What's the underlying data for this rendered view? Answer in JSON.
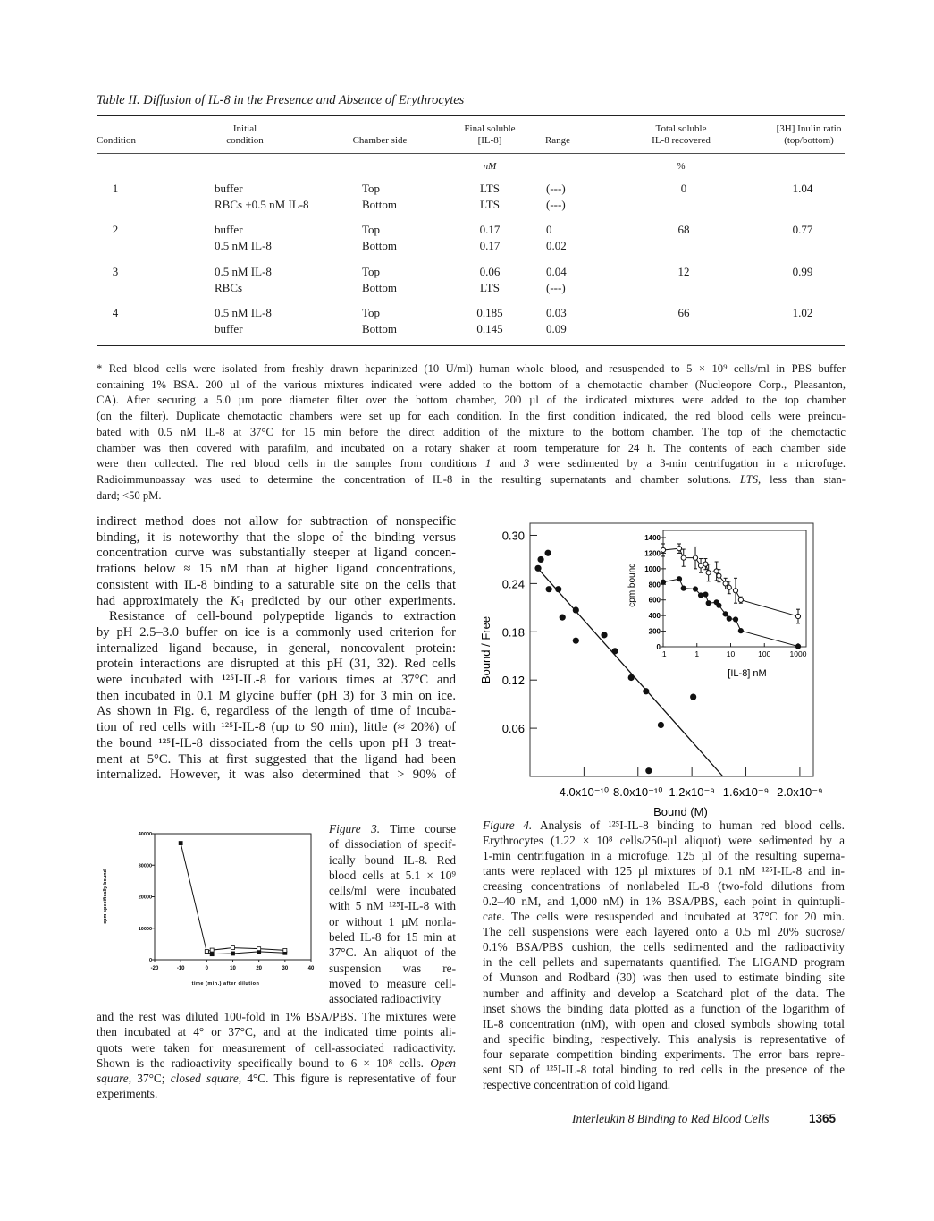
{
  "table": {
    "title": "Table II. Diffusion of IL-8 in the Presence and Absence of Erythrocytes",
    "headers": [
      "Condition",
      "Initial\ncondition",
      "Chamber side",
      "Final soluble\n[IL-8]",
      "Range",
      "Total soluble\nIL-8 recovered",
      "[3H] Inulin ratio\n(top/bottom)"
    ],
    "units": {
      "final": "nM",
      "total": "%"
    },
    "rows": [
      {
        "condition": "1",
        "initial": [
          "buffer",
          "RBCs +0.5 nM IL-8"
        ],
        "side": [
          "Top",
          "Bottom"
        ],
        "final": [
          "LTS",
          "LTS"
        ],
        "range": [
          "(---)",
          "(---)"
        ],
        "total": "0",
        "ratio": "1.04"
      },
      {
        "condition": "2",
        "initial": [
          "buffer",
          "0.5 nM IL-8"
        ],
        "side": [
          "Top",
          "Bottom"
        ],
        "final": [
          "0.17",
          "0.17"
        ],
        "range": [
          "0",
          "0.02"
        ],
        "total": "68",
        "ratio": "0.77"
      },
      {
        "condition": "3",
        "initial": [
          "0.5 nM IL-8",
          "RBCs"
        ],
        "side": [
          "Top",
          "Bottom"
        ],
        "final": [
          "0.06",
          "LTS"
        ],
        "range": [
          "0.04",
          "(---)"
        ],
        "total": "12",
        "ratio": "0.99"
      },
      {
        "condition": "4",
        "initial": [
          "0.5 nM IL-8",
          "buffer"
        ],
        "side": [
          "Top",
          "Bottom"
        ],
        "final": [
          "0.185",
          "0.145"
        ],
        "range": [
          "0.03",
          "0.09"
        ],
        "total": "66",
        "ratio": "1.02"
      }
    ],
    "footnote": [
      "* Red blood cells were isolated from freshly drawn heparinized (10 U/ml) human whole blood, and resuspended to 5 × 10⁹ cells/ml in PBS buffer",
      "containing 1% BSA. 200 µl of the various mixtures indicated were added to the bottom of a chemotactic chamber (Nucleopore Corp., Pleasanton,",
      "CA). After securing a 5.0 µm pore diameter filter over the bottom chamber, 200 µl of the indicated mixtures were added to the top chamber",
      "(on the filter). Duplicate chemotactic chambers were set up for each condition. In the first condition indicated, the red blood cells were preincu-",
      "bated with 0.5 nM IL-8 at 37°C for 15 min before the direct addition of the mixture to the bottom chamber. The top of the chemotactic",
      "chamber was then covered with parafilm, and incubated on a rotary shaker at room temperature for 24 h. The contents of each chamber side",
      [
        {
          "text": "were then collected. The red blood cells in the samples from conditions "
        },
        {
          "text": "1",
          "italic": true
        },
        {
          "text": " and "
        },
        {
          "text": "3",
          "italic": true
        },
        {
          "text": " were sedimented by a 3-min centrifugation in a microfuge."
        }
      ],
      [
        {
          "text": "Radioimmunoassay was used to determine the concentration of IL-8 in the resulting supernatants and chamber solutions. "
        },
        {
          "text": "LTS,",
          "italic": true
        },
        {
          "text": " less than stan-"
        }
      ],
      "dard; <50 pM."
    ]
  },
  "body_text": [
    "indirect method does not allow for subtraction of nonspecific",
    "binding, it is noteworthy that the slope of the binding versus",
    "concentration curve was substantially steeper at ligand concen-",
    "trations below ≈ 15 nM than at higher ligand concentrations,",
    "consistent with IL-8 binding to a saturable site on the cells that",
    [
      {
        "text": "had approximately the "
      },
      {
        "text": "K",
        "italic": true
      },
      {
        "text": "d",
        "sub": true
      },
      {
        "text": " predicted by our other experiments."
      }
    ],
    "    Resistance of cell-bound polypeptide ligands to extraction",
    "by pH 2.5–3.0 buffer on ice is a commonly used criterion for",
    "internalized ligand because, in general, noncovalent protein:",
    "protein interactions are disrupted at this pH (31, 32). Red cells",
    "were incubated with ¹²⁵I-IL-8 for various times at 37°C and",
    "then incubated in 0.1 M glycine buffer (pH 3) for 3 min on ice.",
    "As shown in Fig. 6, regardless of the length of time of incuba-",
    "tion of red cells with ¹²⁵I-IL-8 (up to 90 min), little (≈ 20%) of",
    "the bound ¹²⁵I-IL-8 dissociated from the cells upon pH 3 treat-",
    "ment at 5°C. This at first suggested that the ligand had been",
    "internalized. However, it was also determined that > 90% of"
  ],
  "figure3_caption": [
    [
      {
        "text": "Figure 3.",
        "italic": true
      },
      {
        "text": " Time course"
      }
    ],
    "of dissociation of specif-",
    "ically bound IL-8. Red",
    "blood cells at 5.1 × 10⁹",
    "cells/ml were incubated",
    "with 5 nM ¹²⁵I-IL-8 with",
    "or without 1 µM nonla-",
    "beled IL-8 for 15 min at",
    "37°C. An aliquot of the",
    "suspension was re-",
    "moved to measure cell-",
    "associated radioactivity"
  ],
  "figure3_caption_cont": [
    "and the rest was diluted 100-fold in 1% BSA/PBS. The mixtures were",
    "then incubated at 4° or 37°C, and at the indicated time points ali-",
    "quots were taken for measurement of cell-associated radioactivity.",
    [
      {
        "text": "Shown is the radioactivity specifically bound to 6 × 10⁸ cells. "
      },
      {
        "text": "Open",
        "italic": true
      }
    ],
    [
      {
        "text": "square,",
        "italic": true
      },
      {
        "text": " 37°C; "
      },
      {
        "text": "closed square,",
        "italic": true
      },
      {
        "text": " 4°C. This figure is representative of four"
      }
    ],
    "experiments."
  ],
  "figure4_caption": [
    [
      {
        "text": "Figure 4.",
        "italic": true
      },
      {
        "text": " Analysis of ¹²⁵I-IL-8 binding to human red blood cells."
      }
    ],
    "Erythrocytes (1.22 × 10⁸ cells/250-µl aliquot) were sedimented by a",
    "1-min centrifugation in a microfuge. 125 µl of the resulting superna-",
    "tants were replaced with 125 µl mixtures of 0.1 nM ¹²⁵I-IL-8 and in-",
    "creasing concentrations of nonlabeled IL-8 (two-fold dilutions from",
    "0.2–40 nM, and 1,000 nM) in 1% BSA/PBS, each point in quintupli-",
    "cate. The cells were resuspended and incubated at 37°C for 20 min.",
    "The cell suspensions were each layered onto a 0.5 ml 20% sucrose/",
    "0.1% BSA/PBS cushion, the cells sedimented and the radioactivity",
    "in the cell pellets and supernatants quantified. The LIGAND program",
    "of Munson and Rodbard (30) was then used to estimate binding site",
    "number and affinity and develop a Scatchard plot of the data. The",
    "inset shows the binding data plotted as a function of the logarithm of",
    "IL-8 concentration (nM), with open and closed symbols showing total",
    "and specific binding, respectively. This analysis is representative of",
    "four separate competition binding experiments. The error bars repre-",
    "sent SD of ¹²⁵I-IL-8 total binding to red cells in the presence of the",
    "respective concentration of cold ligand."
  ],
  "footer": {
    "running_title": "Interleukin 8 Binding to Red Blood Cells",
    "page_number": "1365"
  },
  "chart_data": [
    {
      "id": "figure3",
      "type": "line",
      "xlabel": "time (min.) after dilution",
      "ylabel": "cpm specifically bound",
      "xlim": [
        -20,
        40
      ],
      "ylim": [
        0,
        40000
      ],
      "xticks": [
        -20,
        -10,
        0,
        10,
        20,
        30,
        40
      ],
      "yticks": [
        0,
        10000,
        20000,
        30000,
        40000
      ],
      "series": [
        {
          "marker": "closed-square",
          "x": [
            -10,
            0,
            2,
            10,
            20,
            30
          ],
          "y": [
            37000,
            2500,
            1800,
            2000,
            2600,
            2200
          ]
        },
        {
          "marker": "open-square",
          "x": [
            0,
            2,
            10,
            20,
            30
          ],
          "y": [
            2700,
            3100,
            3800,
            3500,
            3000
          ]
        }
      ]
    },
    {
      "id": "figure4-scatchard",
      "type": "scatter",
      "xlabel": "Bound (M)",
      "ylabel": "Bound / Free",
      "xlim": [
        0,
        2.1e-09
      ],
      "ylim": [
        0,
        0.315
      ],
      "xticks": [
        4e-10,
        8e-10,
        1.2e-09,
        1.6e-09,
        2e-09
      ],
      "xtick_labels": [
        "4.0x10⁻¹⁰",
        "8.0x10⁻¹⁰",
        "1.2x10⁻⁹",
        "1.6x10⁻⁹",
        "2.0x10⁻⁹"
      ],
      "yticks": [
        0.06,
        0.12,
        0.18,
        0.24,
        0.3
      ],
      "ytick_labels": [
        "0.06",
        "0.12",
        "0.18",
        "0.24",
        "0.30"
      ],
      "points": {
        "x": [
          6e-11,
          8e-11,
          1.33e-10,
          1.4e-10,
          2.1e-10,
          2.4e-10,
          3.4e-10,
          3.4e-10,
          5.5e-10,
          6.3e-10,
          7.5e-10,
          8.6e-10,
          9.7e-10,
          1.21e-09,
          8.8e-10
        ],
        "y": [
          0.259,
          0.27,
          0.278,
          0.233,
          0.233,
          0.198,
          0.207,
          0.169,
          0.176,
          0.156,
          0.123,
          0.106,
          0.064,
          0.099,
          0.007
        ]
      },
      "fit_line": {
        "x": [
          5.7e-11,
          1.43e-09
        ],
        "y": [
          0.259,
          0
        ]
      }
    },
    {
      "id": "figure4-inset",
      "type": "line",
      "xlabel": "[IL-8] nM",
      "ylabel": "cpm bound",
      "xscale": "log",
      "xlim": [
        0.1,
        2000
      ],
      "ylim": [
        0,
        1450
      ],
      "xticks": [
        0.1,
        1,
        10,
        100,
        1000
      ],
      "xtick_labels": [
        ".1",
        "1",
        "10",
        "100",
        "1000"
      ],
      "yticks": [
        0,
        200,
        400,
        600,
        800,
        1000,
        1200,
        1400
      ],
      "series": [
        {
          "marker": "open-circle",
          "label_meaning": "total",
          "x": [
            0.1,
            0.3,
            0.4,
            0.9,
            1.3,
            1.8,
            2.2,
            3.8,
            4.5,
            7,
            9,
            14,
            20,
            1000
          ],
          "y": [
            1240,
            1260,
            1140,
            1140,
            1040,
            1060,
            950,
            970,
            910,
            810,
            760,
            720,
            600,
            390
          ],
          "err": [
            80,
            60,
            110,
            140,
            90,
            70,
            110,
            120,
            80,
            70,
            80,
            160,
            40,
            90
          ]
        },
        {
          "marker": "closed-circle",
          "label_meaning": "specific",
          "x": [
            0.1,
            0.3,
            0.4,
            0.9,
            1.3,
            1.8,
            2.2,
            3.8,
            4.5,
            7,
            9,
            14,
            20,
            1000
          ],
          "y": [
            830,
            870,
            750,
            740,
            660,
            670,
            560,
            570,
            530,
            420,
            360,
            350,
            205,
            5
          ]
        }
      ]
    }
  ],
  "colors": {
    "ink": "#1a1a1a",
    "paper": "#ffffff"
  }
}
